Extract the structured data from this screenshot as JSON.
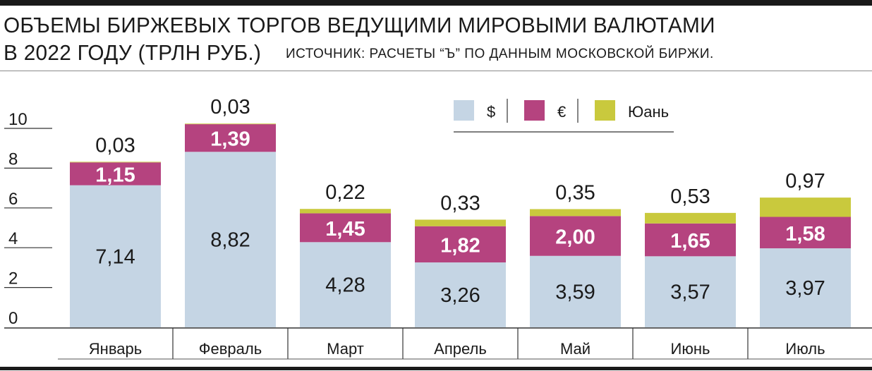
{
  "header": {
    "title_line1": "ОБЪЕМЫ БИРЖЕВЫХ ТОРГОВ ВЕДУЩИМИ МИРОВЫМИ ВАЛЮТАМИ",
    "title_line2": "В 2022 ГОДУ (ТРЛН РУБ.)",
    "source": "ИСТОЧНИК: РАСЧЕТЫ “Ъ” ПО ДАННЫМ МОСКОВСКОЙ БИРЖИ."
  },
  "chart_data": {
    "type": "bar",
    "stacked": true,
    "categories": [
      "Январь",
      "Февраль",
      "Март",
      "Апрель",
      "Май",
      "Июнь",
      "Июль"
    ],
    "series": [
      {
        "name": "$",
        "color": "#c5d5e4",
        "values": [
          7.14,
          8.82,
          4.28,
          3.26,
          3.59,
          3.57,
          3.97
        ],
        "labels": [
          "7,14",
          "8,82",
          "4,28",
          "3,26",
          "3,59",
          "3,57",
          "3,97"
        ]
      },
      {
        "name": "€",
        "color": "#b5437f",
        "values": [
          1.15,
          1.39,
          1.45,
          1.82,
          2.0,
          1.65,
          1.58
        ],
        "labels": [
          "1,15",
          "1,39",
          "1,45",
          "1,82",
          "2,00",
          "1,65",
          "1,58"
        ]
      },
      {
        "name": "Юань",
        "color": "#c9c93d",
        "values": [
          0.03,
          0.03,
          0.22,
          0.33,
          0.35,
          0.53,
          0.97
        ],
        "labels": [
          "0,03",
          "0,03",
          "0,22",
          "0,33",
          "0,35",
          "0,53",
          "0,97"
        ]
      }
    ],
    "yticks": [
      "0",
      "2",
      "4",
      "6",
      "8",
      "10"
    ],
    "ylim": [
      0,
      10
    ],
    "legend_position": "top-right"
  }
}
